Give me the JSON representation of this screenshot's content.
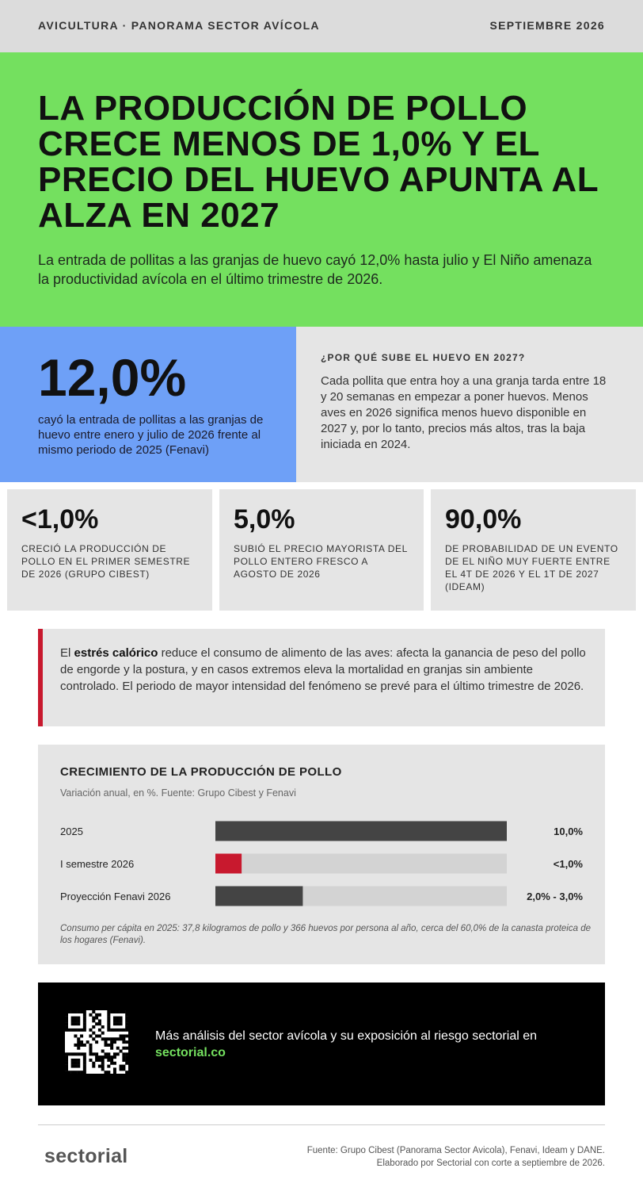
{
  "header": {
    "section": "AVICULTURA · PANORAMA SECTOR AVÍCOLA",
    "date": "SEPTIEMBRE 2026"
  },
  "hero": {
    "title": "LA PRODUCCIÓN DE POLLO CRECE MENOS DE 1,0% Y EL PRECIO DEL HUEVO APUNTA AL ALZA EN 2027",
    "subtitle": "La entrada de pollitas a las granjas de huevo cayó 12,0% hasta julio y El Niño amenaza la productividad avícola en el último trimestre de 2026."
  },
  "highlight": {
    "number": "12,0%",
    "caption": "cayó la entrada de pollitas a las granjas de huevo entre enero y julio de 2026 frente al mismo periodo de 2025 (Fenavi)"
  },
  "explainer": {
    "heading": "¿POR QUÉ SUBE EL HUEVO EN 2027?",
    "body": "Cada pollita que entra hoy a una granja tarda entre 18 y 20 semanas en empezar a poner huevos. Menos aves en 2026 significa menos huevo disponible en 2027 y, por lo tanto, precios más altos, tras la baja iniciada en 2024."
  },
  "stats": [
    {
      "number": "<1,0%",
      "caption": "CRECIÓ LA PRODUCCIÓN DE POLLO EN EL PRIMER SEMESTRE DE 2026 (GRUPO CIBEST)"
    },
    {
      "number": "5,0%",
      "caption": "SUBIÓ EL PRECIO MAYORISTA DEL POLLO ENTERO FRESCO A AGOSTO DE 2026"
    },
    {
      "number": "90,0%",
      "caption": "DE PROBABILIDAD DE UN EVENTO DE EL NIÑO MUY FUERTE ENTRE EL 4T DE 2026 Y EL 1T DE 2027 (IDEAM)"
    }
  ],
  "callout": {
    "before": "El ",
    "bold": "estrés calórico",
    "after": " reduce el consumo de alimento de las aves: afecta la ganancia de peso del pollo de engorde y la postura, y en casos extremos eleva la mortalidad en granjas sin ambiente controlado. El periodo de mayor intensidad del fenómeno se prevé para el último trimestre de 2026."
  },
  "chart_data": {
    "type": "bar",
    "orientation": "horizontal",
    "title": "CRECIMIENTO DE LA PRODUCCIÓN DE POLLO",
    "subtitle": "Variación anual, en %. Fuente: Grupo Cibest y Fenavi",
    "categories": [
      "2025",
      "I semestre 2026",
      "Proyección Fenavi 2026"
    ],
    "values": [
      10,
      0.9,
      3
    ],
    "value_labels": [
      "10,0%",
      "<1,0%",
      "2,0% - 3,0%"
    ],
    "colors": [
      "#444444",
      "#c8192e",
      "#444444"
    ],
    "xlim": [
      0,
      10
    ],
    "note": "Consumo per cápita en 2025: 37,8 kilogramos de pollo y 366 huevos por persona al año, cerca del 60,0% de la canasta proteica de los hogares (Fenavi)."
  },
  "promo": {
    "text": "Más análisis del sector avícola y su exposición al riesgo sectorial en",
    "link": "sectorial.co"
  },
  "footer": {
    "logo": "sectorial",
    "source": "Fuente: Grupo Cibest (Panorama Sector Avicola), Fenavi, Ideam y DANE.",
    "credit": "Elaborado por Sectorial con corte a septiembre de 2026."
  }
}
